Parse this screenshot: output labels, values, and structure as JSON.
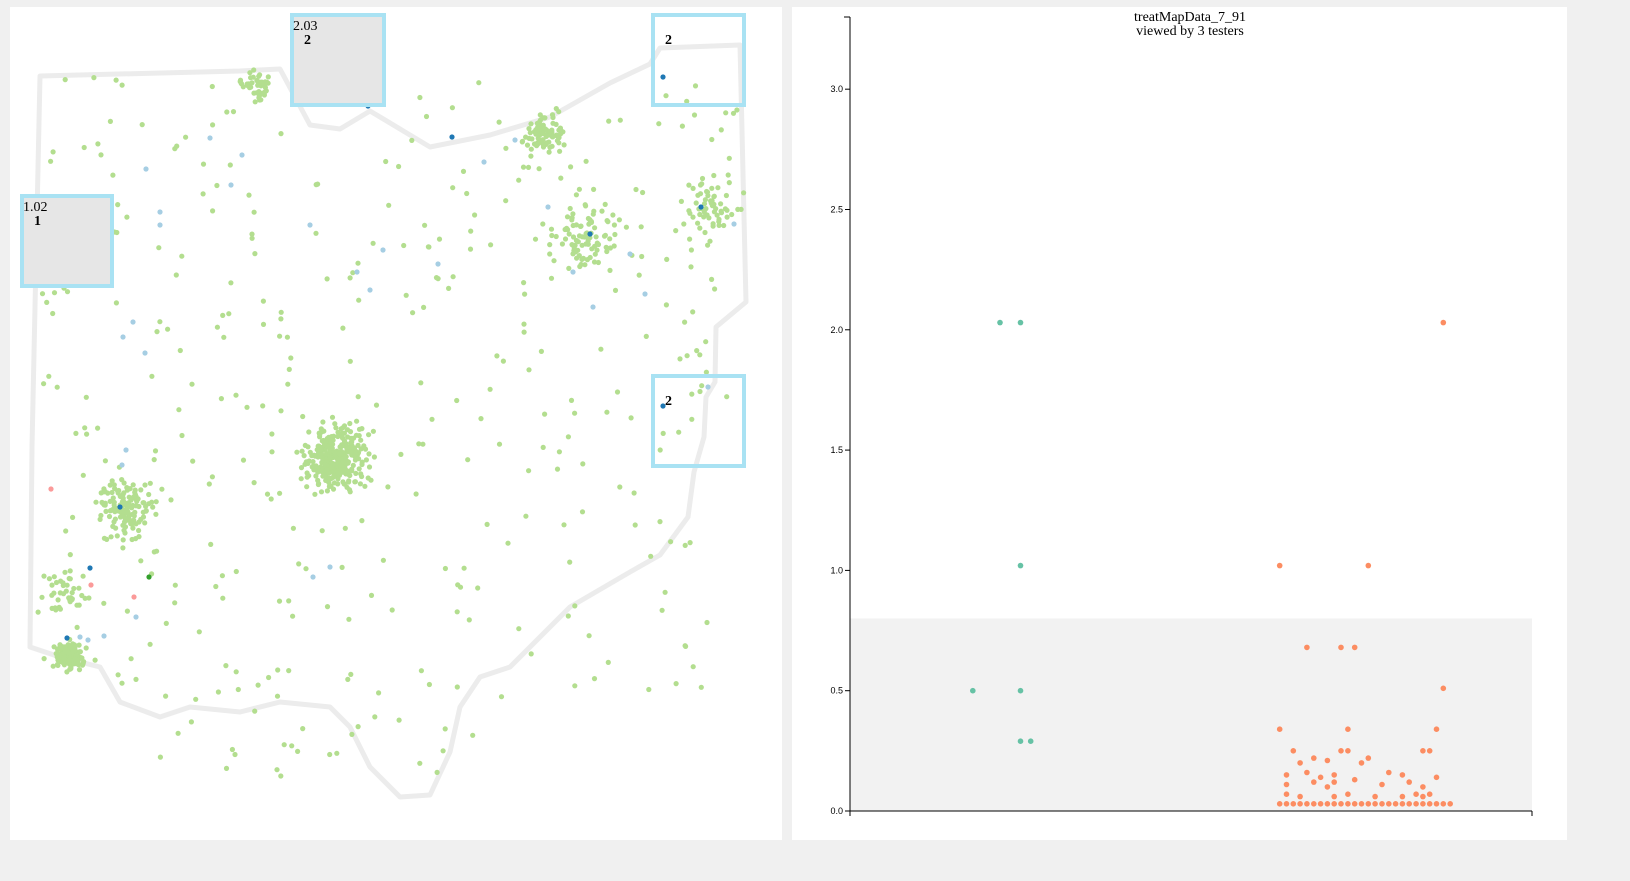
{
  "colors": {
    "map_outline": "#e6e6e6",
    "dot_default": "#b3de8f",
    "dot_light_blue": "#a6cee3",
    "dot_dark_blue": "#1f78b4",
    "dot_dark_green": "#33a02c",
    "dot_pink": "#fb9a99",
    "box_stroke": "#a9e2f3",
    "box_fill": "#e6e6e6",
    "series_teal": "#66c2a5",
    "series_salmon": "#fc8d62",
    "chart_band": "#f2f2f2"
  },
  "map": {
    "selection_boxes": [
      {
        "value_label": "1.02",
        "count_label": "1",
        "filled": true
      },
      {
        "value_label": "2.03",
        "count_label": "2",
        "filled": true
      },
      {
        "value_label": "",
        "count_label": "2",
        "filled": false
      },
      {
        "value_label": "",
        "count_label": "2",
        "filled": false
      }
    ]
  },
  "chart_data": {
    "type": "scatter",
    "title": "treatMapData_7_91",
    "subtitle": "viewed by 3 testers",
    "ylim": [
      0,
      3.3
    ],
    "yticks": [
      0.0,
      0.5,
      1.0,
      1.5,
      2.0,
      2.5,
      3.0
    ],
    "ytick_labels": [
      "0.0",
      "0.5",
      "1.0",
      "1.5",
      "2.0",
      "2.5",
      "3.0"
    ],
    "shaded_band": [
      0,
      0.8
    ],
    "grid": false,
    "series": [
      {
        "color": "#66c2a5",
        "points": [
          [
            0.22,
            2.03
          ],
          [
            0.25,
            2.03
          ],
          [
            0.25,
            1.02
          ],
          [
            0.18,
            0.5
          ],
          [
            0.25,
            0.5
          ],
          [
            0.25,
            0.29
          ],
          [
            0.265,
            0.29
          ]
        ]
      },
      {
        "color": "#fc8d62",
        "points": [
          [
            0.87,
            2.03
          ],
          [
            0.63,
            1.02
          ],
          [
            0.76,
            1.02
          ],
          [
            0.67,
            0.68
          ],
          [
            0.72,
            0.68
          ],
          [
            0.74,
            0.68
          ],
          [
            0.87,
            0.51
          ],
          [
            0.63,
            0.34
          ],
          [
            0.73,
            0.34
          ],
          [
            0.86,
            0.34
          ],
          [
            0.65,
            0.25
          ],
          [
            0.72,
            0.25
          ],
          [
            0.73,
            0.25
          ],
          [
            0.84,
            0.25
          ],
          [
            0.85,
            0.25
          ],
          [
            0.66,
            0.2
          ],
          [
            0.68,
            0.22
          ],
          [
            0.7,
            0.21
          ],
          [
            0.75,
            0.2
          ],
          [
            0.76,
            0.22
          ],
          [
            0.64,
            0.15
          ],
          [
            0.67,
            0.16
          ],
          [
            0.69,
            0.14
          ],
          [
            0.71,
            0.15
          ],
          [
            0.74,
            0.13
          ],
          [
            0.79,
            0.16
          ],
          [
            0.81,
            0.15
          ],
          [
            0.86,
            0.14
          ],
          [
            0.64,
            0.11
          ],
          [
            0.68,
            0.12
          ],
          [
            0.7,
            0.1
          ],
          [
            0.71,
            0.12
          ],
          [
            0.78,
            0.11
          ],
          [
            0.82,
            0.12
          ],
          [
            0.84,
            0.1
          ],
          [
            0.64,
            0.07
          ],
          [
            0.66,
            0.06
          ],
          [
            0.71,
            0.06
          ],
          [
            0.73,
            0.07
          ],
          [
            0.77,
            0.06
          ],
          [
            0.81,
            0.06
          ],
          [
            0.83,
            0.07
          ],
          [
            0.84,
            0.06
          ],
          [
            0.85,
            0.07
          ],
          [
            0.63,
            0.03
          ],
          [
            0.64,
            0.03
          ],
          [
            0.65,
            0.03
          ],
          [
            0.66,
            0.03
          ],
          [
            0.67,
            0.03
          ],
          [
            0.68,
            0.03
          ],
          [
            0.69,
            0.03
          ],
          [
            0.7,
            0.03
          ],
          [
            0.71,
            0.03
          ],
          [
            0.72,
            0.03
          ],
          [
            0.73,
            0.03
          ],
          [
            0.74,
            0.03
          ],
          [
            0.75,
            0.03
          ],
          [
            0.76,
            0.03
          ],
          [
            0.77,
            0.03
          ],
          [
            0.78,
            0.03
          ],
          [
            0.79,
            0.03
          ],
          [
            0.8,
            0.03
          ],
          [
            0.81,
            0.03
          ],
          [
            0.82,
            0.03
          ],
          [
            0.83,
            0.03
          ],
          [
            0.84,
            0.03
          ],
          [
            0.85,
            0.03
          ],
          [
            0.86,
            0.03
          ],
          [
            0.87,
            0.03
          ],
          [
            0.88,
            0.03
          ]
        ]
      }
    ]
  }
}
